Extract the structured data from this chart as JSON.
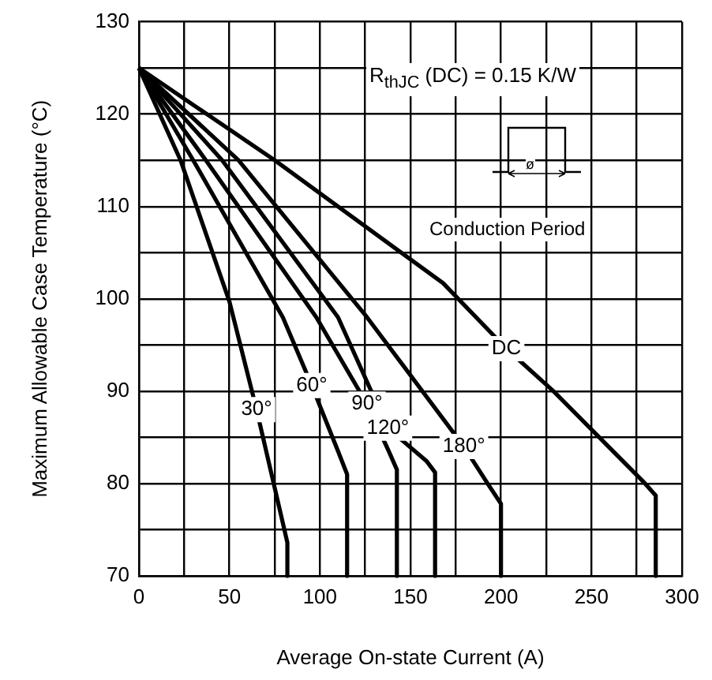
{
  "chart_data": {
    "type": "line",
    "xlabel": "Average On-state Current (A)",
    "ylabel": "Maximum Allowable Case Temperature (°C)",
    "annotations": [
      "R$_{thJC}$ (DC) = 0.15 K/W",
      "ø",
      "Conduction Period"
    ],
    "xlim": [
      0,
      300
    ],
    "xticks": [
      0,
      {
        "value": 25,
        "label": null
      },
      50,
      {
        "value": 75,
        "label": null
      },
      100,
      {
        "value": 125,
        "label": null
      },
      150,
      {
        "value": 175,
        "label": null
      },
      200,
      {
        "value": 225,
        "label": null
      },
      250,
      {
        "value": 275,
        "label": null
      },
      300
    ],
    "ylim": [
      70,
      130
    ],
    "yticks": [
      70,
      {
        "value": 75,
        "label": null
      },
      80,
      {
        "value": 85,
        "label": null
      },
      90,
      {
        "value": 95,
        "label": null
      },
      100,
      {
        "value": 105,
        "label": null
      },
      110,
      {
        "value": 115,
        "label": null
      },
      120,
      {
        "value": 125,
        "label": null
      },
      130
    ],
    "grid": true,
    "legend": false,
    "marker": "none",
    "line_style": "solid",
    "series": [
      {
        "name": "30°",
        "color": "#000000",
        "x": [
          0,
          23,
          50,
          65,
          78,
          82,
          82
        ],
        "values": [
          125,
          115,
          99.7,
          88,
          77,
          73.6,
          70
        ]
      },
      {
        "name": "60°",
        "color": "#000000",
        "x": [
          0,
          30,
          79.5,
          95.5,
          110,
          115,
          115
        ],
        "values": [
          125,
          115,
          98,
          90.6,
          83.5,
          81,
          70
        ]
      },
      {
        "name": "90°",
        "color": "#000000",
        "x": [
          0,
          37,
          98,
          126,
          138,
          142.5,
          142.5
        ],
        "values": [
          125,
          115,
          98,
          88.6,
          83.5,
          81.5,
          70
        ]
      },
      {
        "name": "120°",
        "color": "#000000",
        "x": [
          0,
          46,
          110,
          137.5,
          159,
          163.6,
          163.6
        ],
        "values": [
          125,
          115,
          98,
          86,
          82.4,
          81.2,
          70
        ]
      },
      {
        "name": "180°",
        "color": "#000000",
        "x": [
          0,
          55,
          126,
          179.5,
          192.6,
          200,
          200
        ],
        "values": [
          125,
          115,
          98,
          84,
          80,
          77.8,
          70
        ]
      },
      {
        "name": "DC",
        "color": "#000000",
        "x": [
          0,
          75,
          168,
          203,
          229,
          279.6,
          285.5,
          285.5
        ],
        "values": [
          125,
          115,
          101.7,
          94.6,
          90,
          80,
          78.7,
          70
        ]
      }
    ]
  }
}
